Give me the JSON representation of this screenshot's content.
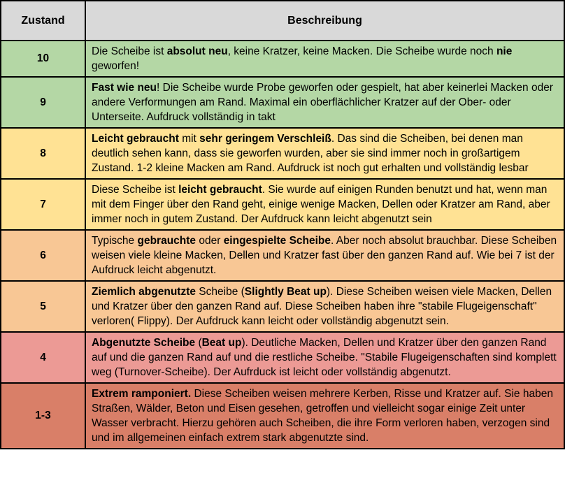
{
  "colors": {
    "header_bg": "#d9d9d9",
    "border": "#000000",
    "green": "#b4d7a5",
    "yellow": "#ffe294",
    "orange": "#f8c795",
    "salmon": "#ec9a95",
    "red": "#d97f68"
  },
  "table": {
    "header": {
      "condition": "Zustand",
      "description": "Beschreibung"
    },
    "rows": [
      {
        "condition": "10",
        "bg": "#b4d7a5",
        "segments": [
          {
            "t": "Die Scheibe ist ",
            "b": false
          },
          {
            "t": "absolut neu",
            "b": true
          },
          {
            "t": ", keine Kratzer, keine Macken. Die Scheibe wurde noch ",
            "b": false
          },
          {
            "t": "nie",
            "b": true
          },
          {
            "t": " geworfen!",
            "b": false
          }
        ]
      },
      {
        "condition": "9",
        "bg": "#b4d7a5",
        "segments": [
          {
            "t": "Fast wie neu",
            "b": true
          },
          {
            "t": "! Die Scheibe wurde Probe geworfen oder gespielt, hat aber keinerlei Macken oder andere Verformungen am Rand. Maximal ein oberflächlicher Kratzer auf der Ober- oder Unterseite. Aufdruck vollständig in takt",
            "b": false
          }
        ]
      },
      {
        "condition": "8",
        "bg": "#ffe294",
        "segments": [
          {
            "t": "Leicht gebraucht",
            "b": true
          },
          {
            "t": " mit ",
            "b": false
          },
          {
            "t": "sehr geringem Verschleiß",
            "b": true
          },
          {
            "t": ". Das sind die Scheiben, bei denen man deutlich sehen kann, dass sie geworfen wurden, aber sie sind immer noch in großartigem Zustand. 1-2 kleine Macken am Rand. Aufdruck ist noch gut erhalten und vollständig lesbar",
            "b": false
          }
        ]
      },
      {
        "condition": "7",
        "bg": "#ffe294",
        "segments": [
          {
            "t": "Diese Scheibe ist ",
            "b": false
          },
          {
            "t": "leicht gebraucht",
            "b": true
          },
          {
            "t": ". Sie wurde auf einigen Runden benutzt und hat, wenn man mit dem Finger über den Rand geht, einige wenige Macken, Dellen oder Kratzer am Rand, aber immer noch in gutem Zustand. Der Aufdruck kann leicht abgenutzt sein",
            "b": false
          }
        ]
      },
      {
        "condition": "6",
        "bg": "#f8c795",
        "segments": [
          {
            "t": "Typische ",
            "b": false
          },
          {
            "t": "gebrauchte",
            "b": true
          },
          {
            "t": " oder ",
            "b": false
          },
          {
            "t": "eingespielte Scheibe",
            "b": true
          },
          {
            "t": ". Aber noch absolut brauchbar. Diese Scheiben weisen viele kleine Macken, Dellen und Kratzer fast über den ganzen Rand auf. Wie bei 7 ist der Aufdruck leicht abgenutzt.",
            "b": false
          }
        ]
      },
      {
        "condition": "5",
        "bg": "#f8c795",
        "segments": [
          {
            "t": "Ziemlich abgenutzte",
            "b": true
          },
          {
            "t": " Scheibe (",
            "b": false
          },
          {
            "t": "Slightly Beat up",
            "b": true
          },
          {
            "t": "). Diese Scheiben weisen viele Macken, Dellen und Kratzer über den ganzen Rand auf. Diese Scheiben haben ihre \"stabile Flugeigenschaft\" verloren( Flippy). Der Aufdruck kann leicht oder vollständig abgenutzt sein.",
            "b": false
          }
        ]
      },
      {
        "condition": "4",
        "bg": "#ec9a95",
        "segments": [
          {
            "t": "Abgenutzte Scheibe",
            "b": true
          },
          {
            "t": " (",
            "b": false
          },
          {
            "t": "Beat up",
            "b": true
          },
          {
            "t": "). Deutliche  Macken, Dellen und Kratzer über den ganzen Rand auf und die ganzen Rand auf und die restliche Scheibe. \"Stabile Flugeigenschaften sind komplett weg (Turnover-Scheibe). Der Aufrduck ist leicht oder vollständig abgenutzt.",
            "b": false
          }
        ]
      },
      {
        "condition": "1-3",
        "bg": "#d97f68",
        "segments": [
          {
            "t": "Extrem ramponiert.",
            "b": true
          },
          {
            "t": " Diese Scheiben weisen mehrere Kerben, Risse und Kratzer auf. Sie haben Straßen, Wälder, Beton und Eisen gesehen, getroffen und vielleicht sogar einige Zeit unter Wasser verbracht. Hierzu gehören auch Scheiben, die ihre Form verloren haben, verzogen sind und im allgemeinen einfach extrem stark abgenutzte sind.",
            "b": false
          }
        ]
      }
    ]
  }
}
